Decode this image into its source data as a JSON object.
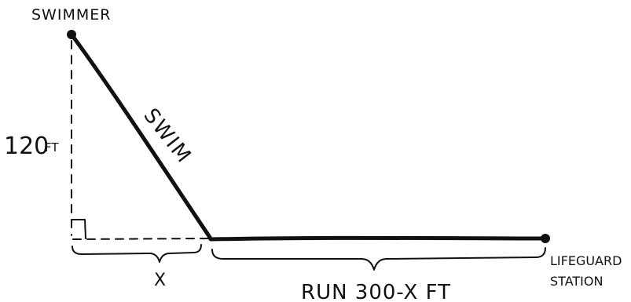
{
  "labels": {
    "swimmer": "SWIMMER",
    "swim": "SWIM",
    "height": "120",
    "height_unit": "FT",
    "x": "X",
    "run": "RUN 300-X FT",
    "station_line1": "LIFEGUARD",
    "station_line2": "STATION"
  },
  "colors": {
    "ink": "#111111",
    "background": "#ffffff"
  }
}
